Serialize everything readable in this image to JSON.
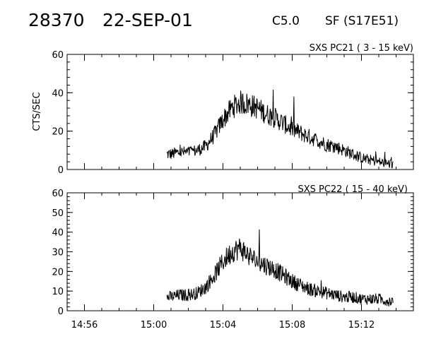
{
  "header": {
    "event_id": "28370",
    "date": "22-SEP-01",
    "goes_class": "C5.0",
    "location": "SF (S17E51)"
  },
  "chart_data": [
    {
      "type": "line",
      "title": "SXS PC21  (  3 - 15 keV)",
      "ylabel": "CTS/SEC",
      "xlabel": "",
      "x_range": [
        "14:55",
        "15:15"
      ],
      "ylim": [
        0,
        60
      ],
      "y_ticks": [
        0,
        20,
        40,
        60
      ],
      "x_ticks": [
        "14:56",
        "15:00",
        "15:04",
        "15:08",
        "15:12"
      ],
      "grid": false,
      "series": [
        {
          "x": [
            "15:00:45",
            "15:01:00",
            "15:01:30",
            "15:02:00",
            "15:02:30",
            "15:03:00",
            "15:03:30",
            "15:04:00",
            "15:04:30",
            "15:05:00",
            "15:05:30",
            "15:06:00",
            "15:06:30",
            "15:07:00",
            "15:07:30",
            "15:08:00",
            "15:08:30",
            "15:09:00",
            "15:09:30",
            "15:10:00",
            "15:10:30",
            "15:11:00",
            "15:11:30",
            "15:12:00",
            "15:12:30",
            "15:13:00",
            "15:13:30",
            "15:13:50"
          ],
          "y": [
            8,
            8,
            9,
            9,
            10,
            12,
            18,
            26,
            32,
            35,
            34,
            32,
            29,
            27,
            24,
            21,
            19,
            17,
            15,
            13,
            12,
            10,
            8,
            6,
            5,
            4,
            3,
            3
          ]
        }
      ]
    },
    {
      "type": "line",
      "title": "SXS PC22  ( 15 - 40 keV)",
      "ylabel": "",
      "xlabel": "",
      "x_range": [
        "14:55",
        "15:15"
      ],
      "ylim": [
        0,
        60
      ],
      "y_ticks": [
        0,
        10,
        20,
        30,
        40,
        50,
        60
      ],
      "x_ticks": [
        "14:56",
        "15:00",
        "15:04",
        "15:08",
        "15:12"
      ],
      "grid": false,
      "series": [
        {
          "x": [
            "15:00:45",
            "15:01:00",
            "15:01:30",
            "15:02:00",
            "15:02:30",
            "15:03:00",
            "15:03:30",
            "15:04:00",
            "15:04:30",
            "15:05:00",
            "15:05:30",
            "15:06:00",
            "15:06:30",
            "15:07:00",
            "15:07:30",
            "15:08:00",
            "15:08:30",
            "15:09:00",
            "15:09:30",
            "15:10:00",
            "15:10:30",
            "15:11:00",
            "15:11:30",
            "15:12:00",
            "15:12:30",
            "15:13:00",
            "15:13:30",
            "15:13:50"
          ],
          "y": [
            7,
            7,
            8,
            8,
            9,
            12,
            18,
            25,
            30,
            32,
            28,
            25,
            23,
            21,
            18,
            15,
            13,
            11,
            10,
            9,
            8,
            7,
            7,
            6,
            6,
            6,
            5,
            5
          ]
        }
      ]
    }
  ]
}
